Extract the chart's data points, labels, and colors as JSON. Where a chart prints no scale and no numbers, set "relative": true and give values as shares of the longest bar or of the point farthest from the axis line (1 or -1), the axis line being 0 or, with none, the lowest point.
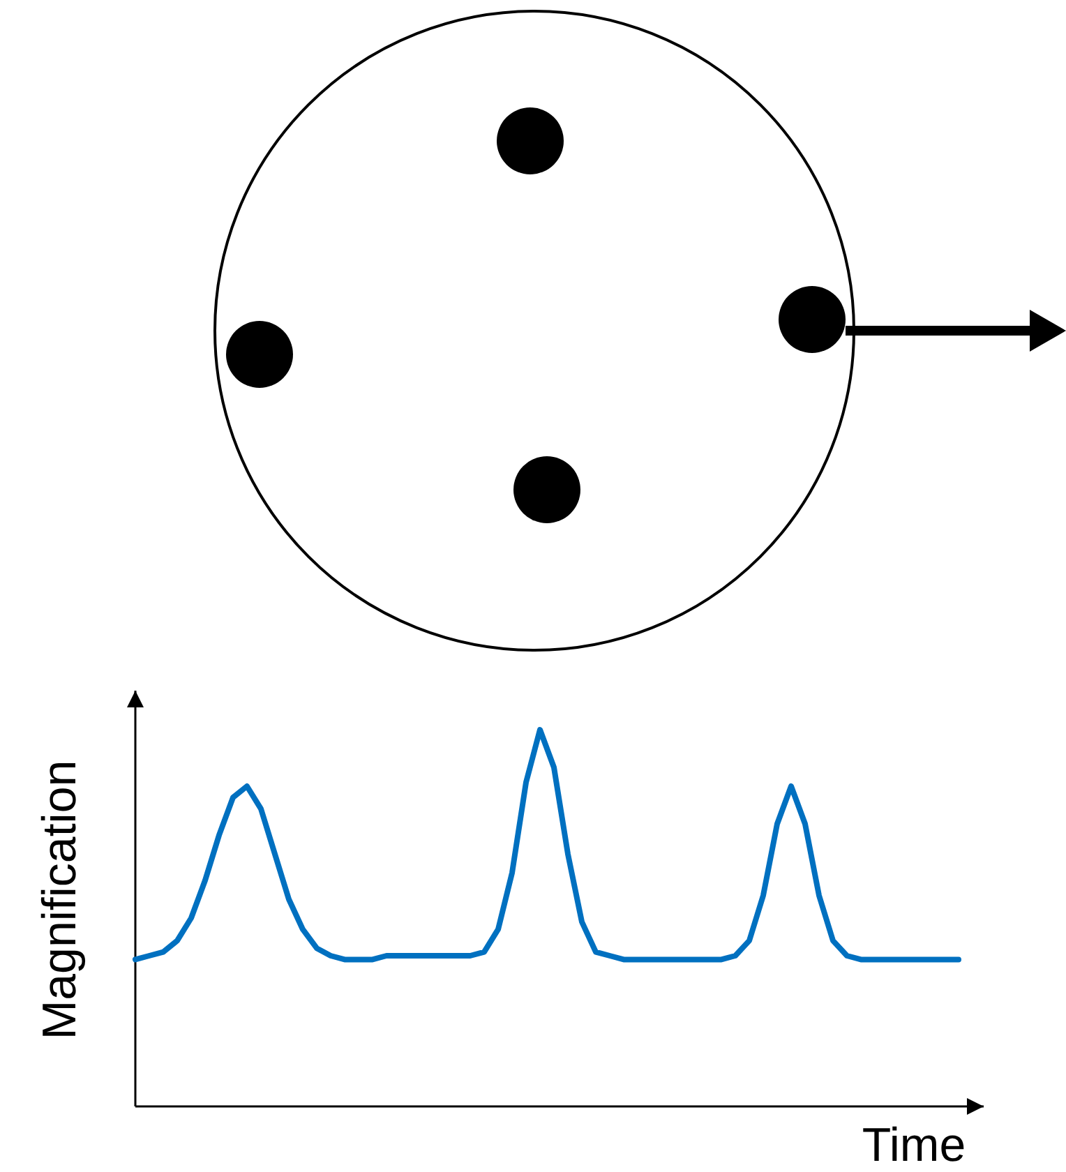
{
  "chart_data": {
    "type": "line",
    "relative": true,
    "xlabel": "Time",
    "ylabel": "Magnification",
    "categories": [
      null,
      null,
      null,
      null,
      null,
      null,
      null,
      null,
      null,
      null,
      null,
      null,
      null,
      null,
      null,
      null,
      null,
      null,
      null,
      null,
      null,
      null,
      null,
      null,
      null,
      null,
      null,
      null,
      null,
      null,
      null,
      null,
      null,
      null,
      null,
      null,
      null,
      null,
      null,
      null,
      null,
      null,
      null,
      null,
      null,
      null,
      null,
      null,
      null,
      null,
      null,
      null,
      null,
      null,
      null,
      null,
      null,
      null,
      null,
      null
    ],
    "series": [
      {
        "color": "#0070c0",
        "values": [
          0.39,
          0.4,
          0.41,
          0.44,
          0.5,
          0.6,
          0.72,
          0.82,
          0.85,
          0.79,
          0.67,
          0.55,
          0.47,
          0.42,
          0.4,
          0.39,
          0.39,
          0.39,
          0.4,
          0.4,
          0.4,
          0.4,
          0.4,
          0.4,
          0.4,
          0.41,
          0.47,
          0.62,
          0.86,
          1,
          0.9,
          0.67,
          0.49,
          0.41,
          0.4,
          0.39,
          0.39,
          0.39,
          0.39,
          0.39,
          0.39,
          0.39,
          0.39,
          0.4,
          0.44,
          0.56,
          0.75,
          0.85,
          0.75,
          0.56,
          0.44,
          0.4,
          0.39,
          0.39,
          0.39,
          0.39,
          0.39,
          0.39,
          0.39,
          0.39
        ]
      }
    ],
    "marker": "none",
    "line_style": "solid"
  }
}
